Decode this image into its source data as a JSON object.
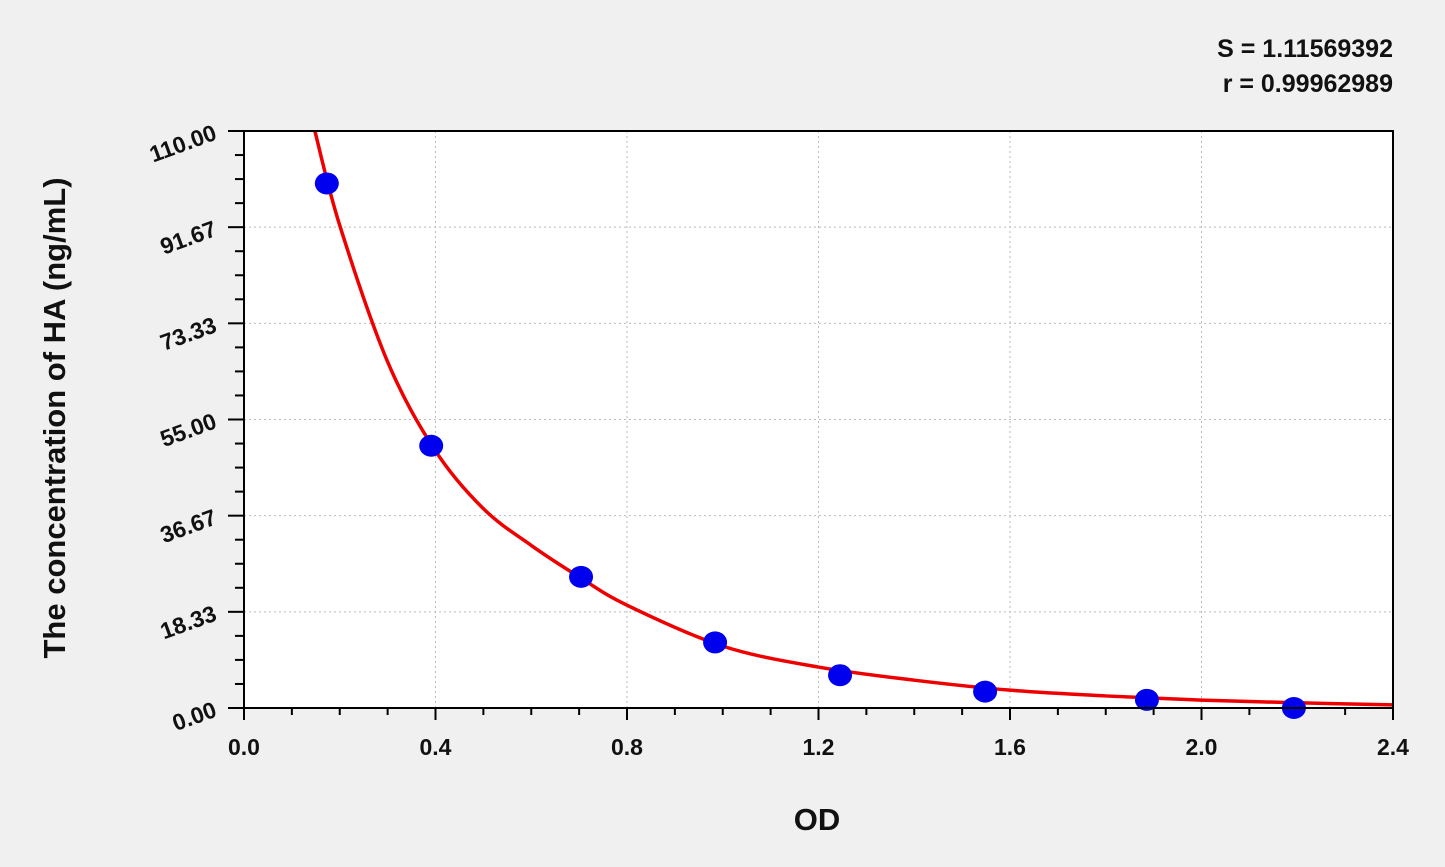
{
  "chart_data": {
    "type": "scatter",
    "title": "",
    "xlabel": "OD",
    "ylabel": "The concentration of HA (ng/mL)",
    "xlim": [
      0.0,
      2.4
    ],
    "ylim": [
      0.0,
      110.0
    ],
    "x_ticks": [
      "0.0",
      "0.4",
      "0.8",
      "1.2",
      "1.6",
      "2.0",
      "2.4"
    ],
    "y_ticks": [
      "0.00",
      "18.33",
      "36.67",
      "55.00",
      "73.33",
      "91.67",
      "110.00"
    ],
    "grid": true,
    "annotations": [
      "S = 1.11569392",
      "r = 0.99962989"
    ],
    "series": [
      {
        "type": "scatter",
        "color": "#0000ee",
        "x": [
          0.173,
          0.391,
          0.704,
          0.984,
          1.245,
          1.548,
          1.886,
          2.193
        ],
        "y": [
          100,
          50,
          25,
          12.5,
          6.25,
          3.125,
          1.56,
          0
        ]
      },
      {
        "type": "line",
        "color": "#ee0000",
        "x": [
          0.148,
          0.2,
          0.3,
          0.4,
          0.5,
          0.6,
          0.7,
          0.8,
          1.0,
          1.2,
          1.4,
          1.6,
          1.8,
          2.0,
          2.2,
          2.4
        ],
        "y": [
          110,
          92,
          66,
          49,
          38,
          31,
          25,
          19.6,
          11.8,
          7.8,
          5.3,
          3.4,
          2.3,
          1.5,
          1.0,
          0.6
        ]
      }
    ]
  }
}
